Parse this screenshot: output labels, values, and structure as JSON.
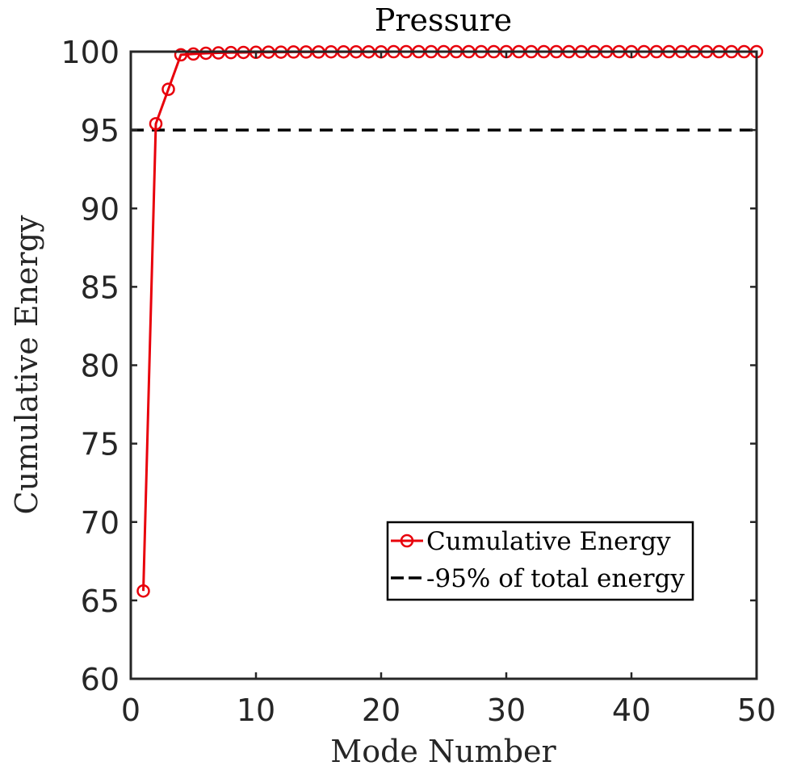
{
  "chart_data": {
    "type": "line",
    "title": "Pressure",
    "xlabel": "Mode Number",
    "ylabel": "Cumulative Energy",
    "xlim": [
      0,
      50
    ],
    "ylim": [
      60,
      100
    ],
    "xticks": [
      0,
      10,
      20,
      30,
      40,
      50
    ],
    "yticks": [
      60,
      65,
      70,
      75,
      80,
      85,
      90,
      95,
      100
    ],
    "series": [
      {
        "name": "Cumulative Energy",
        "color": "#e8000b",
        "marker": "circle",
        "x": [
          1,
          2,
          3,
          4,
          5,
          6,
          7,
          8,
          9,
          10,
          11,
          12,
          13,
          14,
          15,
          16,
          17,
          18,
          19,
          20,
          21,
          22,
          23,
          24,
          25,
          26,
          27,
          28,
          29,
          30,
          31,
          32,
          33,
          34,
          35,
          36,
          37,
          38,
          39,
          40,
          41,
          42,
          43,
          44,
          45,
          46,
          47,
          48,
          49,
          50
        ],
        "values": [
          65.6,
          95.4,
          97.6,
          99.8,
          99.85,
          99.9,
          99.92,
          99.94,
          99.95,
          99.96,
          99.97,
          99.97,
          99.98,
          99.98,
          99.98,
          99.99,
          99.99,
          99.99,
          99.99,
          99.99,
          100,
          100,
          100,
          100,
          100,
          100,
          100,
          100,
          100,
          100,
          100,
          100,
          100,
          100,
          100,
          100,
          100,
          100,
          100,
          100,
          100,
          100,
          100,
          100,
          100,
          100,
          100,
          100,
          100,
          100
        ]
      },
      {
        "name": "-95% of total energy",
        "color": "#000000",
        "style": "dashed",
        "x": [
          0,
          50
        ],
        "values": [
          95,
          95
        ]
      }
    ],
    "legend": {
      "placement": "lower-right",
      "entries": [
        "Cumulative Energy",
        "-95% of total energy"
      ]
    }
  }
}
